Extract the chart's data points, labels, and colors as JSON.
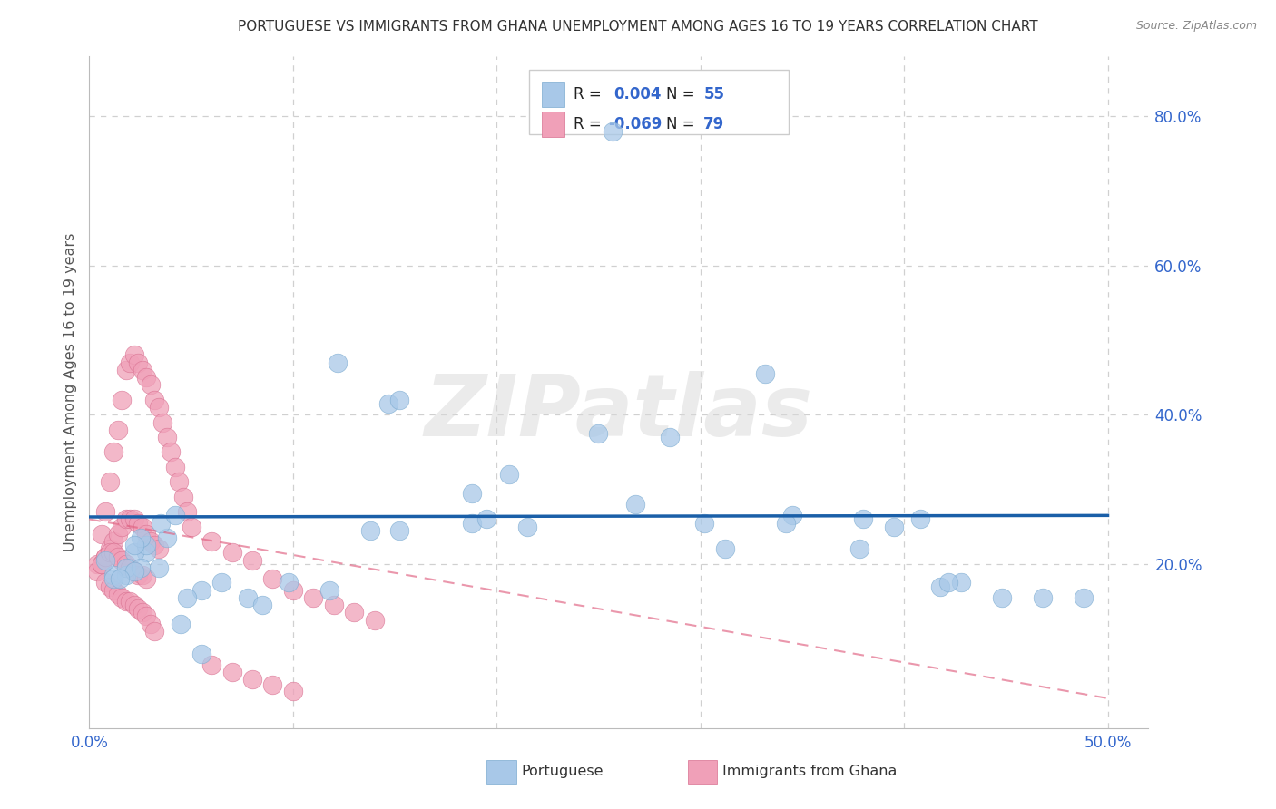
{
  "title": "PORTUGUESE VS IMMIGRANTS FROM GHANA UNEMPLOYMENT AMONG AGES 16 TO 19 YEARS CORRELATION CHART",
  "source": "Source: ZipAtlas.com",
  "ylabel": "Unemployment Among Ages 16 to 19 years",
  "xlim": [
    0.0,
    0.52
  ],
  "ylim": [
    -0.02,
    0.88
  ],
  "blue_color": "#a8c8e8",
  "blue_edge": "#7aaad0",
  "pink_color": "#f0a0b8",
  "pink_edge": "#d87090",
  "blue_line_color": "#1a5fa8",
  "pink_line_color": "#e06080",
  "grid_color": "#d0d0d0",
  "background_color": "#ffffff",
  "watermark_color": "#d8d8d8",
  "watermark_text": "ZIPatlas",
  "tick_color": "#3366cc",
  "title_color": "#333333",
  "ylabel_color": "#555555",
  "source_color": "#888888",
  "legend_edge_color": "#cccccc",
  "blue_x": [
    0.257,
    0.122,
    0.147,
    0.152,
    0.188,
    0.206,
    0.038,
    0.028,
    0.022,
    0.028,
    0.034,
    0.012,
    0.018,
    0.025,
    0.022,
    0.008,
    0.018,
    0.025,
    0.012,
    0.035,
    0.042,
    0.188,
    0.215,
    0.138,
    0.152,
    0.345,
    0.302,
    0.25,
    0.268,
    0.38,
    0.428,
    0.312,
    0.118,
    0.098,
    0.065,
    0.055,
    0.048,
    0.078,
    0.085,
    0.342,
    0.408,
    0.418,
    0.395,
    0.448,
    0.468,
    0.488,
    0.378,
    0.422,
    0.332,
    0.285,
    0.195,
    0.045,
    0.055,
    0.022,
    0.015
  ],
  "blue_y": [
    0.78,
    0.47,
    0.415,
    0.42,
    0.295,
    0.32,
    0.235,
    0.215,
    0.215,
    0.225,
    0.195,
    0.185,
    0.185,
    0.235,
    0.225,
    0.205,
    0.195,
    0.195,
    0.18,
    0.255,
    0.265,
    0.255,
    0.25,
    0.245,
    0.245,
    0.265,
    0.255,
    0.375,
    0.28,
    0.26,
    0.175,
    0.22,
    0.165,
    0.175,
    0.175,
    0.165,
    0.155,
    0.155,
    0.145,
    0.255,
    0.26,
    0.17,
    0.25,
    0.155,
    0.155,
    0.155,
    0.22,
    0.175,
    0.455,
    0.37,
    0.26,
    0.12,
    0.08,
    0.19,
    0.18
  ],
  "pink_x": [
    0.004,
    0.006,
    0.008,
    0.01,
    0.012,
    0.014,
    0.016,
    0.018,
    0.02,
    0.022,
    0.024,
    0.026,
    0.028,
    0.03,
    0.032,
    0.034,
    0.036,
    0.038,
    0.04,
    0.042,
    0.044,
    0.046,
    0.048,
    0.05,
    0.004,
    0.006,
    0.008,
    0.01,
    0.012,
    0.014,
    0.016,
    0.018,
    0.02,
    0.022,
    0.024,
    0.026,
    0.028,
    0.03,
    0.032,
    0.034,
    0.006,
    0.008,
    0.01,
    0.012,
    0.014,
    0.016,
    0.018,
    0.02,
    0.022,
    0.024,
    0.026,
    0.028,
    0.008,
    0.01,
    0.012,
    0.014,
    0.016,
    0.018,
    0.02,
    0.022,
    0.024,
    0.026,
    0.028,
    0.03,
    0.032,
    0.06,
    0.07,
    0.08,
    0.09,
    0.1,
    0.11,
    0.12,
    0.13,
    0.14,
    0.06,
    0.07,
    0.08,
    0.09,
    0.1
  ],
  "pink_y": [
    0.2,
    0.24,
    0.27,
    0.31,
    0.35,
    0.38,
    0.42,
    0.46,
    0.47,
    0.48,
    0.47,
    0.46,
    0.45,
    0.44,
    0.42,
    0.41,
    0.39,
    0.37,
    0.35,
    0.33,
    0.31,
    0.29,
    0.27,
    0.25,
    0.19,
    0.2,
    0.21,
    0.22,
    0.23,
    0.24,
    0.25,
    0.26,
    0.26,
    0.26,
    0.255,
    0.25,
    0.24,
    0.23,
    0.225,
    0.22,
    0.2,
    0.21,
    0.215,
    0.215,
    0.21,
    0.205,
    0.2,
    0.195,
    0.19,
    0.185,
    0.185,
    0.18,
    0.175,
    0.17,
    0.165,
    0.16,
    0.155,
    0.15,
    0.15,
    0.145,
    0.14,
    0.135,
    0.13,
    0.12,
    0.11,
    0.23,
    0.215,
    0.205,
    0.18,
    0.165,
    0.155,
    0.145,
    0.135,
    0.125,
    0.065,
    0.055,
    0.045,
    0.038,
    0.03
  ],
  "blue_trend_x": [
    0.0,
    0.5
  ],
  "blue_trend_y": [
    0.263,
    0.265
  ],
  "pink_trend_x": [
    0.0,
    0.5
  ],
  "pink_trend_y": [
    0.26,
    0.02
  ]
}
